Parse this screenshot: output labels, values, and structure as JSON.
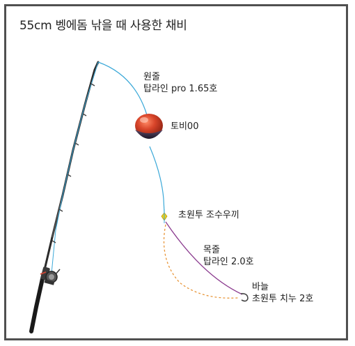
{
  "title": "55cm 벵에돔 낚을 때 사용한 채비",
  "labels": {
    "main_line": {
      "name": "원줄",
      "spec": "탑라인 pro 1.65호"
    },
    "float": {
      "name": "토비00"
    },
    "swivel": {
      "name": "초원투 조수우끼"
    },
    "leader": {
      "name": "목줄",
      "spec": "탑라인 2.0호"
    },
    "hook": {
      "name": "바늘",
      "spec": "초원투 치누 2호"
    }
  },
  "colors": {
    "main_line": "#3aa8d8",
    "leader": "#8a3a8e",
    "drift_path": "#e8963a",
    "float_top": "#d8452a",
    "float_bottom": "#3a2a4a",
    "swivel": "#f0d21a",
    "rod": "#2b2b2b"
  }
}
